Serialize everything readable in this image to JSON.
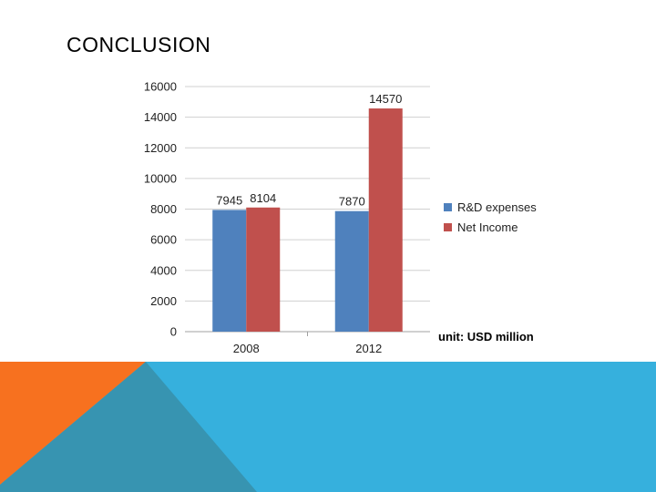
{
  "slide": {
    "title": "CONCLUSION"
  },
  "colors": {
    "rd_series": "#4f81bd",
    "net_income_series": "#c0504d",
    "band_blue": "#36b0dd",
    "band_orange": "#f7711f",
    "band_teal": "#3794b1"
  },
  "chart_data": {
    "type": "bar",
    "categories": [
      "2008",
      "2012"
    ],
    "series": [
      {
        "name": "R&D expenses",
        "values": [
          7945,
          7870
        ],
        "color": "#4f81bd"
      },
      {
        "name": "Net Income",
        "values": [
          8104,
          14570
        ],
        "color": "#c0504d"
      }
    ],
    "data_labels": [
      "7945",
      "7870",
      "8104",
      "14570"
    ],
    "y_ticks": [
      "0",
      "2000",
      "4000",
      "6000",
      "8000",
      "10000",
      "12000",
      "14000",
      "16000"
    ],
    "ylim": [
      0,
      16000
    ],
    "grid": true,
    "legend": "right",
    "unit_note": "unit: USD million"
  }
}
